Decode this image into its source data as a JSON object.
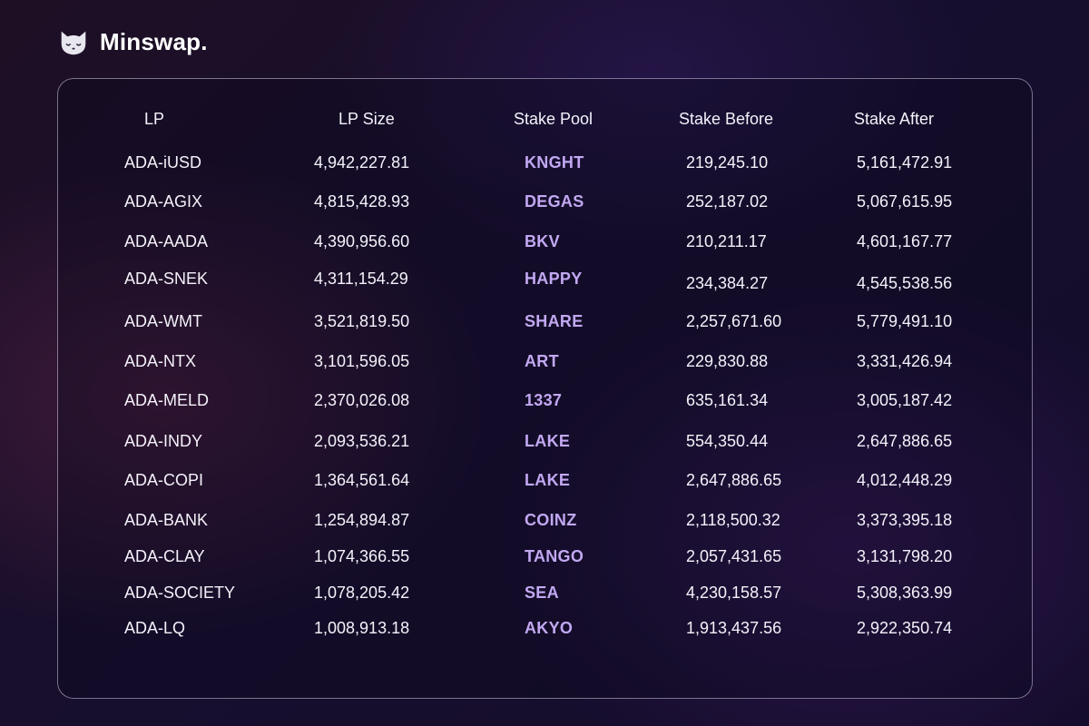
{
  "brand": {
    "name": "Minswap.",
    "icon": "cat-icon"
  },
  "colors": {
    "pool_accent": "#c2a8f2",
    "text": "#f4f2fa",
    "panel_border": "#d2c8e6"
  },
  "table": {
    "headers": {
      "lp": "LP",
      "lp_size": "LP Size",
      "stake_pool": "Stake Pool",
      "stake_before": "Stake Before",
      "stake_after": "Stake After"
    },
    "rows": [
      {
        "lp": "ADA-iUSD",
        "lp_size": "4,942,227.81",
        "pool": "KNGHT",
        "before": "219,245.10",
        "after": "5,161,472.91"
      },
      {
        "lp": "ADA-AGIX",
        "lp_size": "4,815,428.93",
        "pool": "DEGAS",
        "before": "252,187.02",
        "after": "5,067,615.95"
      },
      {
        "lp": "ADA-AADA",
        "lp_size": "4,390,956.60",
        "pool": "BKV",
        "before": "210,211.17",
        "after": "4,601,167.77"
      },
      {
        "lp": "ADA-SNEK",
        "lp_size": "4,311,154.29",
        "pool": "HAPPY",
        "before": "234,384.27",
        "after": "4,545,538.56"
      },
      {
        "lp": "ADA-WMT",
        "lp_size": "3,521,819.50",
        "pool": "SHARE",
        "before": "2,257,671.60",
        "after": "5,779,491.10"
      },
      {
        "lp": "ADA-NTX",
        "lp_size": "3,101,596.05",
        "pool": "ART",
        "before": "229,830.88",
        "after": "3,331,426.94"
      },
      {
        "lp": "ADA-MELD",
        "lp_size": "2,370,026.08",
        "pool": "1337",
        "before": "635,161.34",
        "after": "3,005,187.42"
      },
      {
        "lp": "ADA-INDY",
        "lp_size": "2,093,536.21",
        "pool": "LAKE",
        "before": "554,350.44",
        "after": "2,647,886.65"
      },
      {
        "lp": "ADA-COPI",
        "lp_size": "1,364,561.64",
        "pool": "LAKE",
        "before": "2,647,886.65",
        "after": "4,012,448.29"
      },
      {
        "lp": "ADA-BANK",
        "lp_size": "1,254,894.87",
        "pool": "COINZ",
        "before": "2,118,500.32",
        "after": "3,373,395.18"
      },
      {
        "lp": "ADA-CLAY",
        "lp_size": "1,074,366.55",
        "pool": "TANGO",
        "before": "2,057,431.65",
        "after": "3,131,798.20"
      },
      {
        "lp": "ADA-SOCIETY",
        "lp_size": "1,078,205.42",
        "pool": "SEA",
        "before": "4,230,158.57",
        "after": "5,308,363.99"
      },
      {
        "lp": "ADA-LQ",
        "lp_size": "1,008,913.18",
        "pool": "AKYO",
        "before": "1,913,437.56",
        "after": "2,922,350.74"
      }
    ]
  }
}
